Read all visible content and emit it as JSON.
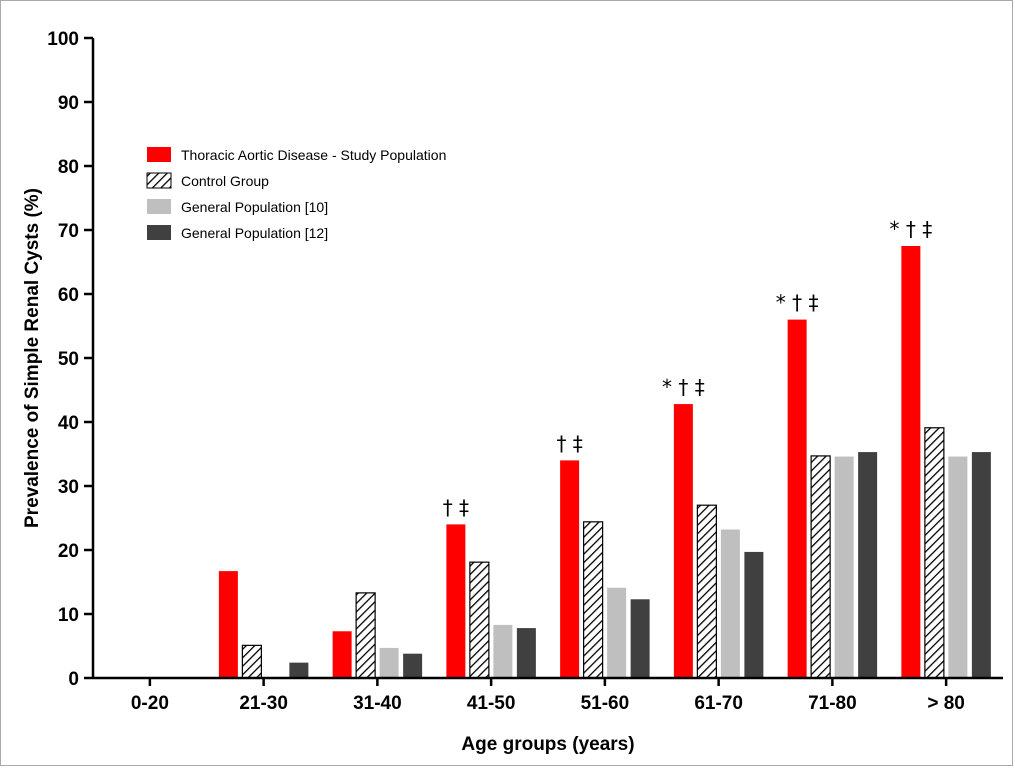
{
  "chart_data": {
    "type": "bar",
    "xlabel": "Age groups (years)",
    "ylabel": "Prevalence of Simple Renal Cysts (%)",
    "ylim": [
      0,
      100
    ],
    "yticks": [
      0,
      10,
      20,
      30,
      40,
      50,
      60,
      70,
      80,
      90,
      100
    ],
    "grid": false,
    "legend_position": "top-left",
    "categories": [
      "0-20",
      "21-30",
      "31-40",
      "41-50",
      "51-60",
      "61-70",
      "71-80",
      "> 80"
    ],
    "series": [
      {
        "name": "Thoracic Aortic Disease - Study Population",
        "style": "solid",
        "color": "#ff0000",
        "values": [
          0,
          16.7,
          7.3,
          24.0,
          34.0,
          42.8,
          56.0,
          67.5
        ]
      },
      {
        "name": "Control Group",
        "style": "hatched",
        "color": "#000000",
        "values": [
          0,
          5.1,
          13.3,
          18.1,
          24.4,
          27.0,
          34.7,
          39.1
        ]
      },
      {
        "name": "General Population [10]",
        "style": "solid",
        "color": "#bfbfbf",
        "values": [
          0,
          0,
          4.7,
          8.3,
          14.1,
          23.2,
          34.6,
          34.6
        ]
      },
      {
        "name": "General Population [12]",
        "style": "solid",
        "color": "#404040",
        "values": [
          0,
          2.4,
          3.8,
          7.8,
          12.3,
          19.7,
          35.3,
          35.3
        ]
      }
    ],
    "annotations": [
      {
        "category": "41-50",
        "text": "† ‡"
      },
      {
        "category": "51-60",
        "text": "† ‡"
      },
      {
        "category": "61-70",
        "text": "* † ‡"
      },
      {
        "category": "71-80",
        "text": "* † ‡"
      },
      {
        "category": "> 80",
        "text": "* † ‡"
      }
    ]
  }
}
